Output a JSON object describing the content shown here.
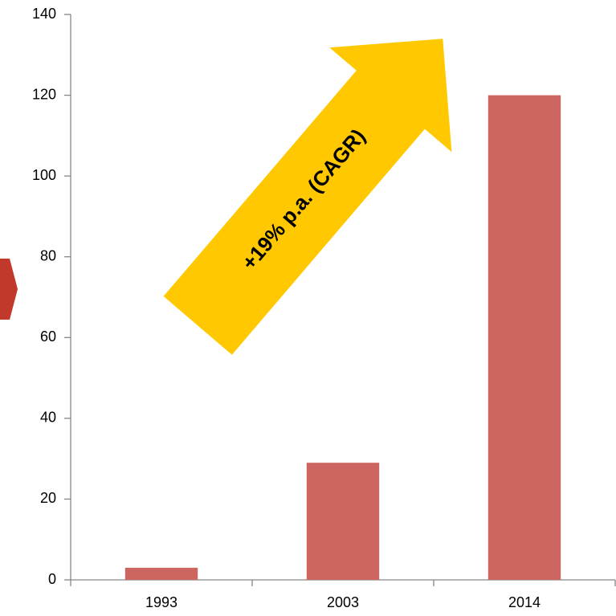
{
  "chart_data": {
    "type": "bar",
    "categories": [
      "1993",
      "2003",
      "2014"
    ],
    "values": [
      3,
      29,
      120
    ],
    "title": "",
    "xlabel": "",
    "ylabel": "",
    "ylim": [
      0,
      140
    ],
    "y_ticks": [
      0,
      20,
      40,
      60,
      80,
      100,
      120,
      140
    ],
    "y_tick_labels": [
      "0",
      "20",
      "40",
      "60",
      "80",
      "100",
      "120",
      "140"
    ],
    "grid": false,
    "legend": "none",
    "colors": {
      "bar": "#CD6660",
      "arrow": "#FFC800",
      "side_marker": "#C0392B",
      "axis": "#868686"
    },
    "annotation": {
      "text": "+19% p.a. (CAGR)",
      "shape": "arrow-up-right",
      "from": {
        "category": "1993",
        "value": 60
      },
      "to": {
        "category": "2014",
        "value": 134
      }
    }
  }
}
